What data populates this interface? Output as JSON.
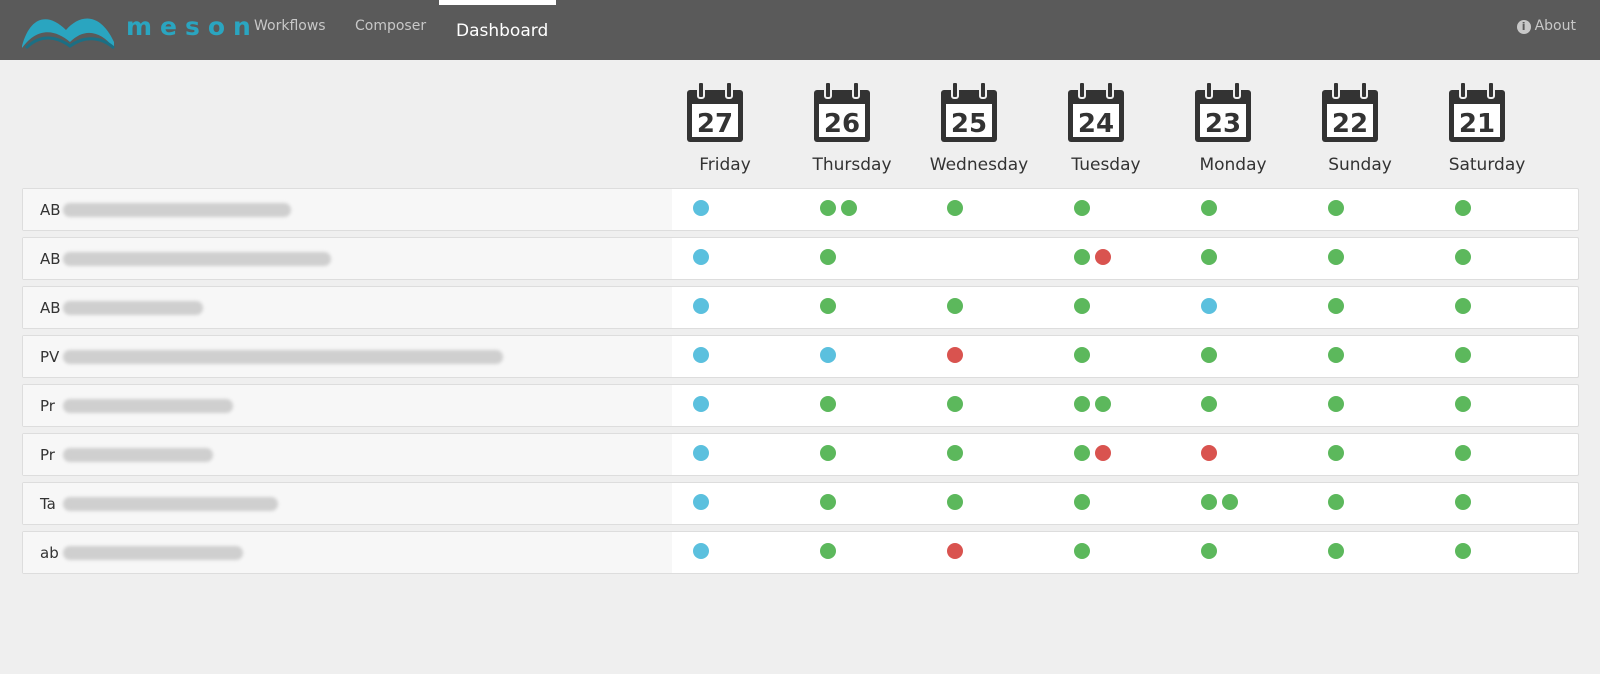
{
  "header": {
    "brand": "meson",
    "nav": [
      "Workflows",
      "Composer",
      "Dashboard"
    ],
    "active": 2,
    "about": "About"
  },
  "days": [
    {
      "date": "27",
      "name": "Friday"
    },
    {
      "date": "26",
      "name": "Thursday"
    },
    {
      "date": "25",
      "name": "Wednesday"
    },
    {
      "date": "24",
      "name": "Tuesday"
    },
    {
      "date": "23",
      "name": "Monday"
    },
    {
      "date": "22",
      "name": "Sunday"
    },
    {
      "date": "21",
      "name": "Saturday"
    }
  ],
  "rows": [
    {
      "label": "AB",
      "cells": [
        [
          "#5bc0de"
        ],
        [
          "#5cb85c",
          "#5cb85c"
        ],
        [
          "#5cb85c"
        ],
        [
          "#5cb85c"
        ],
        [
          "#5cb85c"
        ],
        [
          "#5cb85c"
        ],
        [
          "#5cb85c"
        ]
      ]
    },
    {
      "label": "AB",
      "cells": [
        [
          "#5bc0de"
        ],
        [
          "#5cb85c"
        ],
        [],
        [
          "#5cb85c",
          "#d9534f"
        ],
        [
          "#5cb85c"
        ],
        [
          "#5cb85c"
        ],
        [
          "#5cb85c"
        ]
      ]
    },
    {
      "label": "AB",
      "cells": [
        [
          "#5bc0de"
        ],
        [
          "#5cb85c"
        ],
        [
          "#5cb85c"
        ],
        [
          "#5cb85c"
        ],
        [
          "#5bc0de"
        ],
        [
          "#5cb85c"
        ],
        [
          "#5cb85c"
        ]
      ]
    },
    {
      "label": "PV",
      "cells": [
        [
          "#5bc0de"
        ],
        [
          "#5bc0de"
        ],
        [
          "#d9534f"
        ],
        [
          "#5cb85c"
        ],
        [
          "#5cb85c"
        ],
        [
          "#5cb85c"
        ],
        [
          "#5cb85c"
        ]
      ]
    },
    {
      "label": "Pr",
      "cells": [
        [
          "#5bc0de"
        ],
        [
          "#5cb85c"
        ],
        [
          "#5cb85c"
        ],
        [
          "#5cb85c",
          "#5cb85c"
        ],
        [
          "#5cb85c"
        ],
        [
          "#5cb85c"
        ],
        [
          "#5cb85c"
        ]
      ]
    },
    {
      "label": "Pr",
      "cells": [
        [
          "#5bc0de"
        ],
        [
          "#5cb85c"
        ],
        [
          "#5cb85c"
        ],
        [
          "#5cb85c",
          "#d9534f"
        ],
        [
          "#d9534f"
        ],
        [
          "#5cb85c"
        ],
        [
          "#5cb85c"
        ]
      ]
    },
    {
      "label": "Ta",
      "cells": [
        [
          "#5bc0de"
        ],
        [
          "#5cb85c"
        ],
        [
          "#5cb85c"
        ],
        [
          "#5cb85c"
        ],
        [
          "#5cb85c",
          "#5cb85c"
        ],
        [
          "#5cb85c"
        ],
        [
          "#5cb85c"
        ]
      ]
    },
    {
      "label": "ab",
      "cells": [
        [
          "#5bc0de"
        ],
        [
          "#5cb85c"
        ],
        [
          "#d9534f"
        ],
        [
          "#5cb85c"
        ],
        [
          "#5cb85c"
        ],
        [
          "#5cb85c"
        ],
        [
          "#5cb85c"
        ]
      ]
    }
  ]
}
